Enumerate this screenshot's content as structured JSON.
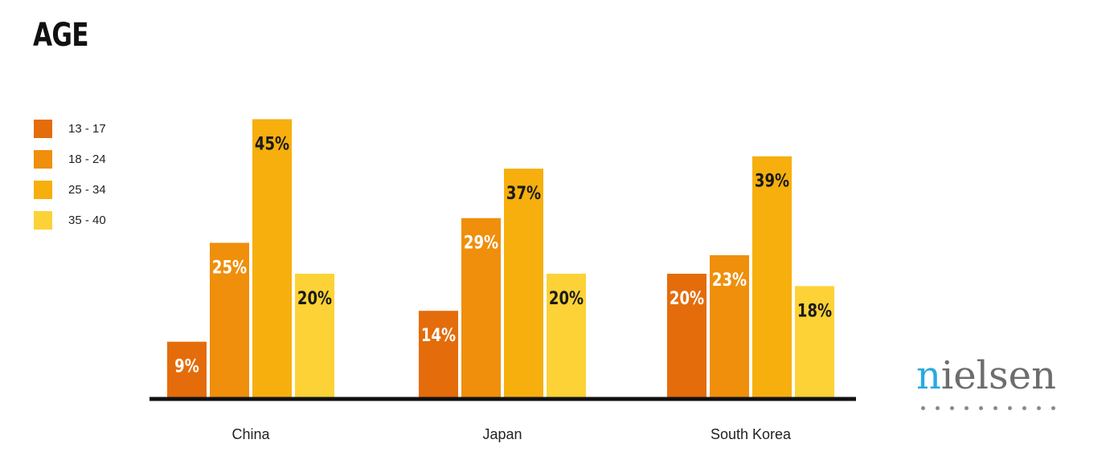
{
  "chart_data": {
    "type": "bar",
    "title": "AGE",
    "categories": [
      "China",
      "Japan",
      "South Korea"
    ],
    "series": [
      {
        "name": "13 - 17",
        "color": "#E46C0A",
        "values": [
          9,
          14,
          20
        ],
        "value_labels": [
          "9%",
          "14%",
          "20%"
        ],
        "label_color": "#ffffff"
      },
      {
        "name": "18 - 24",
        "color": "#EF8F0B",
        "values": [
          25,
          29,
          23
        ],
        "value_labels": [
          "25%",
          "29%",
          "23%"
        ],
        "label_color": "#ffffff"
      },
      {
        "name": "25 - 34",
        "color": "#F6AF0D",
        "values": [
          45,
          37,
          39
        ],
        "value_labels": [
          "45%",
          "37%",
          "39%"
        ],
        "label_color": "#1a1a1a"
      },
      {
        "name": "35 - 40",
        "color": "#FCD236",
        "values": [
          20,
          20,
          18
        ],
        "value_labels": [
          "20%",
          "20%",
          "18%"
        ],
        "label_color": "#1a1a1a"
      }
    ],
    "ylim": [
      0,
      45
    ],
    "grid": false,
    "legend_position": "left"
  },
  "legend": {
    "items": [
      {
        "label": "13 - 17",
        "color": "#E46C0A"
      },
      {
        "label": "18 - 24",
        "color": "#EF8F0B"
      },
      {
        "label": "25 - 34",
        "color": "#F6AF0D"
      },
      {
        "label": "35 - 40",
        "color": "#FCD236"
      }
    ]
  },
  "logo": {
    "accent_letter": "n",
    "rest": "ielsen",
    "accent_color": "#29A9E0",
    "icon": "nielsen-logo-icon"
  }
}
